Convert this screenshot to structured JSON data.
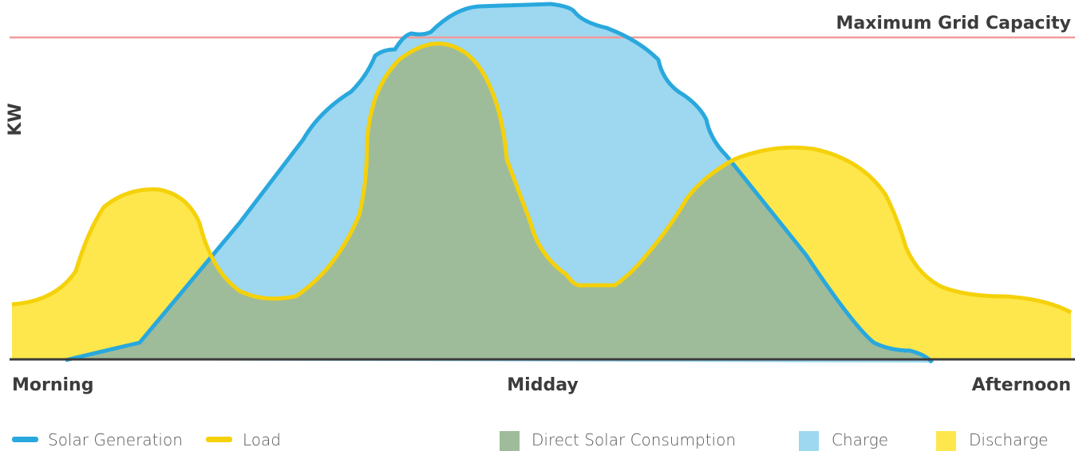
{
  "annotation": "Maximum Grid Capacity",
  "y_axis_label": "KW",
  "x_axis_labels": [
    "Morning",
    "Midday",
    "Afternoon"
  ],
  "legend": {
    "lines": [
      "Solar Generation",
      "Load"
    ],
    "areas": [
      "Direct Solar Consumption",
      "Charge",
      "Discharge"
    ]
  }
}
